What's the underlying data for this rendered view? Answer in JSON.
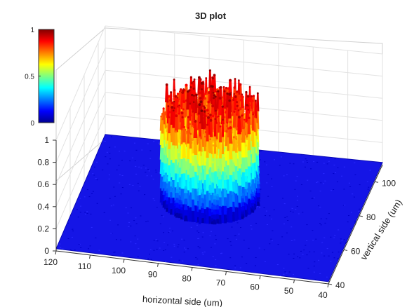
{
  "chart_data": {
    "type": "surface3d",
    "title": "3D plot",
    "xlabel": "horizontal side (um)",
    "ylabel": "vertical side (um)",
    "zlabel": "",
    "x_range": [
      40,
      120
    ],
    "y_range": [
      40,
      110
    ],
    "z_range": [
      0,
      1
    ],
    "x_ticks": [
      "120",
      "110",
      "100",
      "90",
      "80",
      "70",
      "60",
      "50",
      "40"
    ],
    "x_tick_values": [
      120,
      110,
      100,
      90,
      80,
      70,
      60,
      50,
      40
    ],
    "y_ticks": [
      "40",
      "60",
      "80",
      "100"
    ],
    "y_tick_values": [
      40,
      60,
      80,
      100
    ],
    "z_ticks": [
      "0",
      "0.2",
      "0.4",
      "0.6",
      "0.8",
      "1"
    ],
    "z_tick_values": [
      0,
      0.2,
      0.4,
      0.6,
      0.8,
      1
    ],
    "grid": true,
    "colormap": "jet",
    "colorbar": {
      "placement": "top-left",
      "ticks": [
        "0",
        "0.5",
        "1"
      ],
      "tick_values": [
        0,
        0.5,
        1
      ]
    },
    "surface": {
      "description_values": "random-like intensity inside a cylinder of approximate radius 14 um centered near x=83, y=78; near zero outside",
      "center_x": 83,
      "center_y": 78,
      "radius": 14,
      "inside_range": [
        0.1,
        1
      ],
      "outside_level": 0.02
    }
  }
}
